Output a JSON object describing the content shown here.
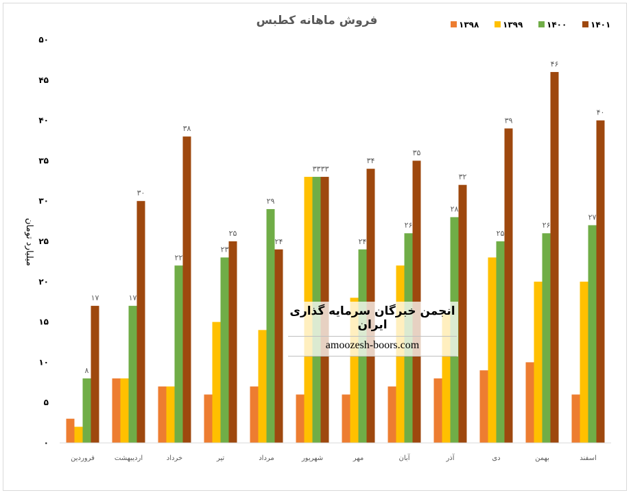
{
  "chart_data": {
    "type": "bar",
    "title": "فروش ماهانه کطبس",
    "ylabel": "میلیارد تومان",
    "xlabel": "",
    "ylim": [
      0,
      50
    ],
    "yticks": [
      "۰",
      "۵",
      "۱۰",
      "۱۵",
      "۲۰",
      "۲۵",
      "۳۰",
      "۳۵",
      "۴۰",
      "۴۵",
      "۵۰"
    ],
    "grid": false,
    "legend_position": "top-right",
    "categories": [
      "فروردین",
      "اردیبهشت",
      "خرداد",
      "تیر",
      "مرداد",
      "شهریور",
      "مهر",
      "آبان",
      "آذر",
      "دی",
      "بهمن",
      "اسفند"
    ],
    "series": [
      {
        "name": "۱۳۹۸",
        "color": "#ED7D31",
        "values": [
          3,
          8,
          7,
          6,
          7,
          6,
          6,
          7,
          8,
          9,
          10,
          6
        ]
      },
      {
        "name": "۱۳۹۹",
        "color": "#FFC000",
        "values": [
          2,
          8,
          7,
          15,
          14,
          33,
          18,
          22,
          16,
          23,
          20,
          20
        ]
      },
      {
        "name": "۱۴۰۰",
        "color": "#70AD47",
        "values": [
          8,
          17,
          22,
          23,
          29,
          33,
          24,
          26,
          28,
          25,
          26,
          27
        ],
        "labels": [
          "۸",
          "۱۷",
          "۲۲",
          "۲۳",
          "۲۹",
          "۳۳",
          "۲۴",
          "۲۶",
          "۲۸",
          "۲۵",
          "۲۶",
          "۲۷"
        ]
      },
      {
        "name": "۱۴۰۱",
        "color": "#9E480E",
        "values": [
          17,
          30,
          38,
          25,
          24,
          33,
          34,
          35,
          32,
          39,
          46,
          40
        ],
        "labels": [
          "۱۷",
          "۳۰",
          "۳۸",
          "۲۵",
          "۲۴",
          "۳۳",
          "۳۴",
          "۳۵",
          "۳۲",
          "۳۹",
          "۴۶",
          "۴۰"
        ]
      }
    ]
  },
  "watermark": {
    "title": "انجمن خبرگان سرمایه گذاری ایران",
    "url": "amoozesh-boors.com"
  }
}
